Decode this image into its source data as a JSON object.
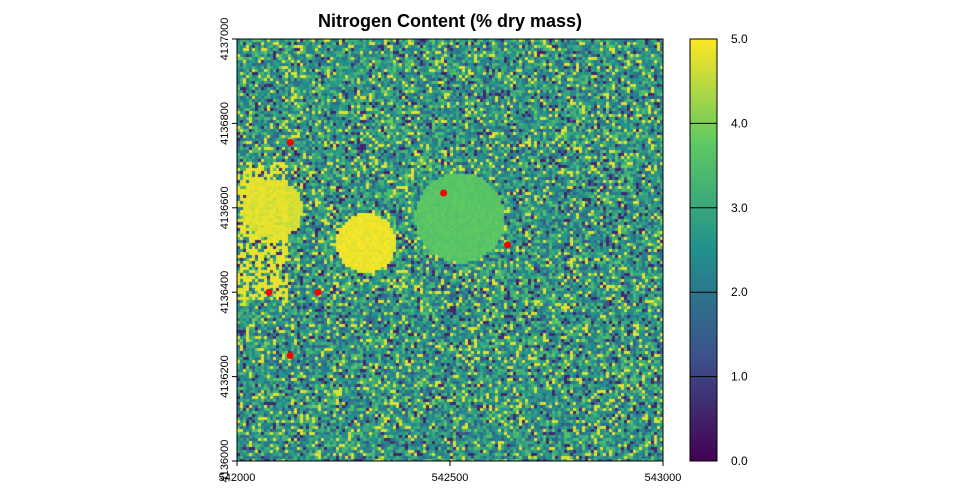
{
  "chart_data": {
    "type": "heatmap",
    "title": "Nitrogen Content (% dry mass)",
    "xlabel": "",
    "ylabel": "",
    "xlim": [
      542000,
      543000
    ],
    "ylim": [
      4136000,
      4137000
    ],
    "x_ticks": [
      "542000",
      "542500",
      "543000"
    ],
    "y_ticks": [
      "4136000",
      "4136200",
      "4136400",
      "4136600",
      "4136800",
      "4137000"
    ],
    "colorbar": {
      "range": [
        0.0,
        5.0
      ],
      "ticks": [
        "0.0",
        "1.0",
        "2.0",
        "3.0",
        "4.0",
        "5.0"
      ],
      "colormap": [
        "#440154",
        "#3b528b",
        "#21908c",
        "#5dc863",
        "#fde725"
      ]
    },
    "points": [
      {
        "x": 542125,
        "y": 4136755
      },
      {
        "x": 542485,
        "y": 4136635
      },
      {
        "x": 542635,
        "y": 4136512
      },
      {
        "x": 542075,
        "y": 4136400
      },
      {
        "x": 542190,
        "y": 4136400
      },
      {
        "x": 542125,
        "y": 4136250
      }
    ],
    "point_color": "#ff0000",
    "features": [
      {
        "kind": "high-value patch",
        "x": 542300,
        "y": 4136520,
        "value": 5.0
      },
      {
        "kind": "high-value region",
        "x": 542080,
        "y": 4136600,
        "value": 4.8
      },
      {
        "kind": "moderate patch",
        "x": 542520,
        "y": 4136580,
        "value": 3.8
      }
    ]
  }
}
